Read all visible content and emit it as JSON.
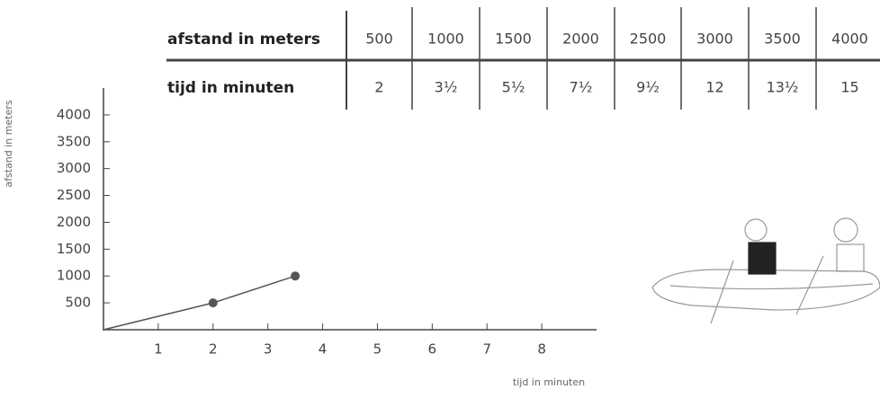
{
  "table": {
    "rows": [
      {
        "label": "afstand in meters",
        "cells": [
          "500",
          "1000",
          "1500",
          "2000",
          "2500",
          "3000",
          "3500",
          "4000"
        ]
      },
      {
        "label": "tijd in minuten",
        "cells": [
          "2",
          "3½",
          "5½",
          "7½",
          "9½",
          "12",
          "13½",
          "15"
        ]
      }
    ]
  },
  "chart_data": {
    "type": "line",
    "x_label": "tijd in minuten",
    "y_label": "afstand in meters",
    "x": [
      0,
      2,
      3.5
    ],
    "values": [
      0,
      500,
      1000
    ],
    "color": "#555",
    "xlim": [
      0,
      9
    ],
    "ylim": [
      0,
      4500
    ],
    "xticks": [
      1,
      2,
      3,
      4,
      5,
      6,
      7,
      8
    ],
    "yticks": [
      500,
      1000,
      1500,
      2000,
      2500,
      3000,
      3500,
      4000
    ]
  }
}
